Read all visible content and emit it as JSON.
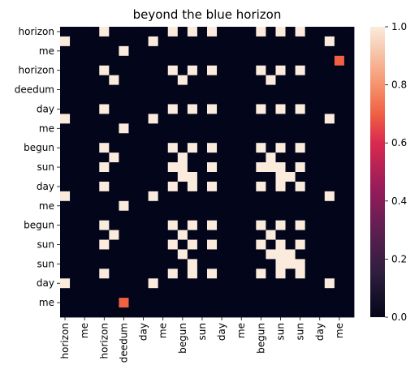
{
  "chart_data": {
    "type": "heatmap",
    "title": "beyond the blue horizon",
    "xlabel": "",
    "ylabel": "",
    "n_rows": 30,
    "n_cols": 30,
    "x_tick_labels": [
      "horizon",
      "me",
      "horizon",
      "deedum",
      "day",
      "me",
      "begun",
      "sun",
      "day",
      "me",
      "begun",
      "sun",
      "sun",
      "day",
      "me"
    ],
    "y_tick_labels": [
      "horizon",
      "me",
      "horizon",
      "deedum",
      "day",
      "me",
      "begun",
      "sun",
      "day",
      "me",
      "begun",
      "sun",
      "sun",
      "day",
      "me"
    ],
    "tick_every": 2,
    "colorbar": {
      "min": 0.0,
      "max": 1.0,
      "ticks": [
        "0.0",
        "0.2",
        "0.4",
        "0.6",
        "0.8",
        "1.0"
      ],
      "colormap": "rocket"
    },
    "rows": [
      "000010000001010100001010100000",
      "100000000100000000000000000100",
      "000000100000000000000000000000",
      "000000000000000000000000000000",
      "000010000001010100001010100000",
      "000001000000100000000100000000",
      "000000000000000000000000000000",
      "000000000000000000000000000000",
      "000010000001010100001010100000",
      "100000000100000000000000000100",
      "000000100000000000000000000000",
      "000000000000000000000000000000",
      "000010000001010100001010100000",
      "000001000000100000000100000000",
      "000010000001100100001110100000",
      "000000000000110000000011000000",
      "000010000001010100001010100000",
      "100000000100000000000000000100",
      "000000100000000000000000000000",
      "000000000000000000000000000000",
      "000010000001010100001010100000",
      "000001000000100000000100000000",
      "000010000001010100001010100000",
      "000000000000100000000111000000",
      "000000000000010000000011100000",
      "000010000001010100001010100000",
      "100000000100000000000000000100",
      "000000000000000000000000000000",
      "000000000000000000000000000000",
      "000000000000000000000000000000"
    ],
    "overrides": [
      {
        "row": 3,
        "col": 28,
        "value": 0.7
      },
      {
        "row": 28,
        "col": 6,
        "value": 0.7
      }
    ]
  }
}
